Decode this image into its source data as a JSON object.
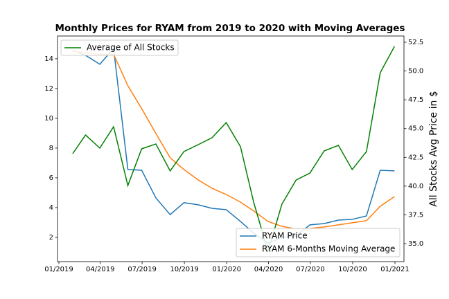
{
  "chart_data": {
    "type": "line",
    "title": "Monthly Prices for RYAM from 2019 to 2020 with Moving Averages",
    "y2_label": "All Stocks Avg Price in $",
    "x": [
      "2019-01",
      "2019-02",
      "2019-03",
      "2019-04",
      "2019-05",
      "2019-06",
      "2019-07",
      "2019-08",
      "2019-09",
      "2019-10",
      "2019-11",
      "2019-12",
      "2020-01",
      "2020-02",
      "2020-03",
      "2020-04",
      "2020-05",
      "2020-06",
      "2020-07",
      "2020-08",
      "2020-09",
      "2020-10",
      "2020-11",
      "2020-12"
    ],
    "xticks": [
      "01/2019",
      "04/2019",
      "07/2019",
      "10/2019",
      "01/2020",
      "04/2020",
      "07/2020",
      "10/2020",
      "01/2021"
    ],
    "ylim": [
      0.37,
      15.53
    ],
    "yticks": [
      2,
      4,
      6,
      8,
      10,
      12,
      14
    ],
    "y2lim": [
      33.44,
      53.04
    ],
    "y2ticks": [
      {
        "value": 35,
        "label": "35.0"
      },
      37.5,
      {
        "value": 40,
        "label": "40.0"
      },
      42.5,
      {
        "value": 45,
        "label": "45.0"
      },
      47.5,
      {
        "value": 50,
        "label": "50.0"
      },
      52.5
    ],
    "series": [
      {
        "name": "RYAM Price",
        "color": "#1f77b4",
        "values": [
          14.56,
          14.23,
          13.63,
          14.7,
          6.56,
          6.51,
          4.65,
          3.53,
          4.33,
          4.19,
          3.95,
          3.86,
          3.07,
          2.28,
          1.6,
          2.0,
          2.1,
          2.84,
          2.93,
          3.16,
          3.21,
          3.44,
          6.51,
          6.47
        ]
      },
      {
        "name": "RYAM 6-Months Moving Average",
        "color": "#ff7f0e",
        "values": [
          14.5,
          14.4,
          14.3,
          14.3,
          12.19,
          10.65,
          8.98,
          7.35,
          6.56,
          5.86,
          5.3,
          4.88,
          4.37,
          3.77,
          3.07,
          2.74,
          2.56,
          2.6,
          2.7,
          2.84,
          2.98,
          3.12,
          4.09,
          4.74
        ]
      },
      {
        "name": "Average of All Stocks",
        "color": "#008000",
        "axis": "y2",
        "values": [
          42.82,
          44.44,
          43.3,
          45.16,
          40.05,
          43.24,
          43.66,
          41.32,
          43.0,
          43.6,
          44.2,
          45.52,
          43.42,
          38.55,
          34.34,
          38.43,
          40.53,
          41.13,
          43.06,
          43.54,
          41.44,
          43.0,
          49.85,
          52.14
        ]
      }
    ]
  }
}
